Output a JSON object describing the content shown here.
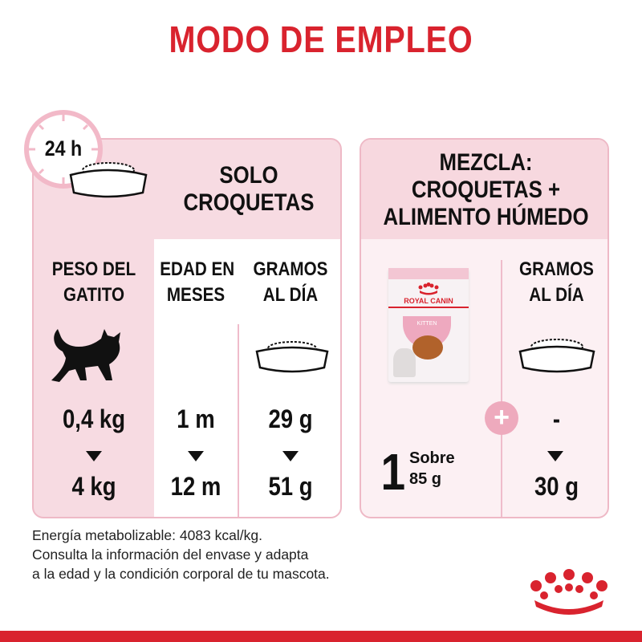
{
  "title": "MODO DE EMPLEO",
  "left_panel": {
    "clock_label": "24 h",
    "heading": [
      "SOLO",
      "CROQUETAS"
    ],
    "columns": [
      {
        "header": [
          "PESO DEL",
          "GATITO"
        ],
        "from": "0,4 kg",
        "to": "4 kg"
      },
      {
        "header": [
          "EDAD EN",
          "MESES"
        ],
        "from": "1 m",
        "to": "12 m"
      },
      {
        "header": [
          "GRAMOS",
          "AL DÍA"
        ],
        "from": "29 g",
        "to": "51 g"
      }
    ]
  },
  "right_panel": {
    "heading": [
      "MEZCLA:",
      "CROQUETAS +",
      "ALIMENTO HÚMEDO"
    ],
    "pouch_brand": "ROYAL CANIN",
    "pouch_label": "KITTEN",
    "sachet_count": "1",
    "sachet_unit": "Sobre",
    "sachet_weight": "85 g",
    "column_header": [
      "GRAMOS",
      "AL DÍA"
    ],
    "from": "-",
    "to": "30 g"
  },
  "footer": [
    "Energía metabolizable: 4083 kcal/kg.",
    "Consulta la información del envase y adapta",
    "a la edad y la condición corporal de tu mascota."
  ],
  "colors": {
    "brand_red": "#d9232e",
    "pink": "#f7dbe2",
    "pink_border": "#eeb9c6"
  }
}
